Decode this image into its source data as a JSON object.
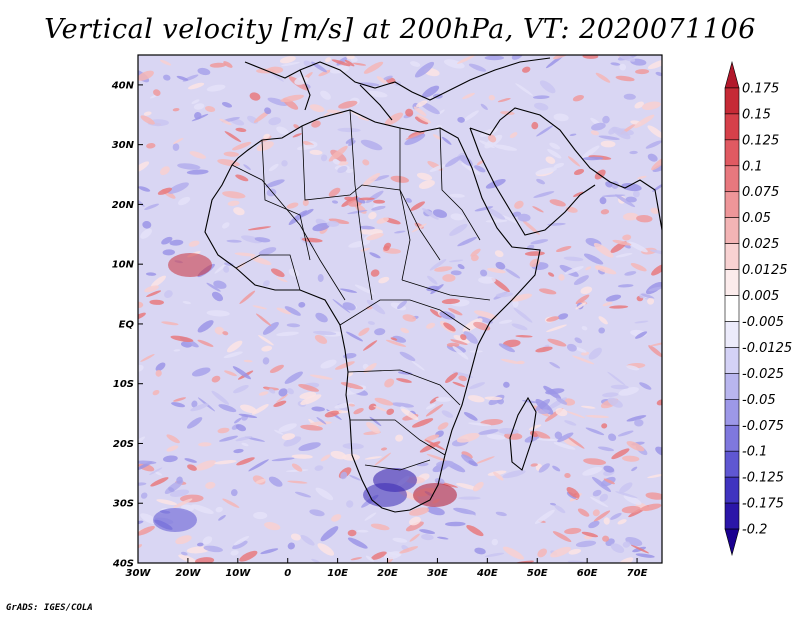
{
  "title": "Vertical velocity [m/s] at 200hPa, VT: 2020071106",
  "credit": "GrADS: IGES/COLA",
  "map": {
    "lon_ticks": [
      "30W",
      "20W",
      "10W",
      "0",
      "10E",
      "20E",
      "30E",
      "40E",
      "50E",
      "60E",
      "70E"
    ],
    "lat_ticks": [
      "40N",
      "30N",
      "20N",
      "10N",
      "EQ",
      "10S",
      "20S",
      "30S",
      "40S"
    ],
    "lon_range": [
      -30,
      75
    ],
    "lat_range": [
      -40,
      45
    ]
  },
  "colorbar": {
    "labels": [
      "0.175",
      "0.15",
      "0.125",
      "0.1",
      "0.075",
      "0.05",
      "0.025",
      "0.0125",
      "0.005",
      "-0.005",
      "-0.0125",
      "-0.025",
      "-0.05",
      "-0.075",
      "-0.1",
      "-0.125",
      "-0.175",
      "-0.2"
    ],
    "colors": [
      "#b2182b",
      "#c62a36",
      "#d6404a",
      "#e05a62",
      "#e8787e",
      "#ee9699",
      "#f3b4b5",
      "#f8d2d2",
      "#fcecec",
      "#ffffff",
      "#ecebfb",
      "#d4d2f6",
      "#b9b6ef",
      "#9d98e8",
      "#7f78de",
      "#5f57d2",
      "#4034c0",
      "#2b16a8",
      "#1a0090"
    ]
  }
}
